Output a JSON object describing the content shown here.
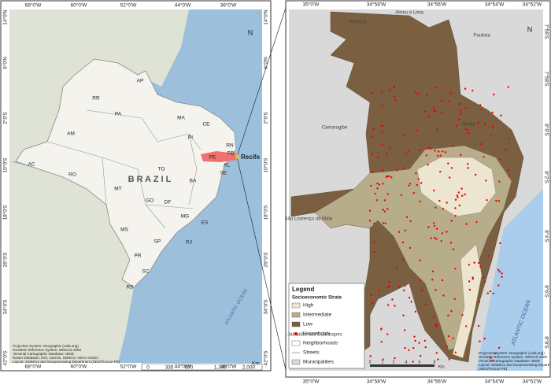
{
  "left_map": {
    "north": "N",
    "lon_labels": [
      "68°0'W",
      "60°0'W",
      "52°0'W",
      "44°0'W",
      "36°0'W"
    ],
    "lat_labels": [
      "14°0'N",
      "6°0'N",
      "2°0'S",
      "10°0'S",
      "18°0'S",
      "26°0'S",
      "34°0'S",
      "42°0'S"
    ],
    "states": [
      "RR",
      "AP",
      "AM",
      "PA",
      "MA",
      "CE",
      "RN",
      "PB",
      "PE",
      "AL",
      "SE",
      "PI",
      "AC",
      "RO",
      "TO",
      "BA",
      "MT",
      "GO",
      "DF",
      "MG",
      "ES",
      "MS",
      "SP",
      "RJ",
      "PR",
      "SC",
      "RS"
    ],
    "country": "B R A Z I L",
    "city": "Recife",
    "ocean": "ATLANTIC OCEAN",
    "scale": {
      "ticks": [
        "0",
        "335",
        "670",
        "1,340",
        "2,000"
      ],
      "unit": "Km"
    },
    "notes": [
      "Projection System: Geographic (Lat/Long)",
      "Geodetic Reference System: SIRGAS 2000",
      "Vectorial Cartographic Database: IBGE",
      "Raster Database: Esri, Garmin, GEBCO, NOAA NGDC",
      "Layout: Statistics and Geoprocessing Department (SEG/Fiocruz-PE)"
    ]
  },
  "right_map": {
    "north": "N",
    "lon_labels": [
      "35°0'W",
      "34°58'W",
      "34°56'W",
      "34°54'W",
      "34°52'W"
    ],
    "lat_labels": [
      "7°56'S",
      "7°58'S",
      "8°0'S",
      "8°2'S",
      "8°4'S",
      "8°6'S",
      "8°8'S"
    ],
    "places": [
      "Paulista",
      "Abreu e Lima",
      "Paulista",
      "Camaragibe",
      "Olinda",
      "São Lourenço da Mata",
      "Jaboatão dos Guararapes"
    ],
    "ocean": "ATLANTIC OCEAN",
    "legend": {
      "title": "Legend",
      "subtitle": "Socioeconomic Strata",
      "items": [
        "High",
        "Intermediate",
        "Low",
        "Households",
        "Neighborhoods",
        "Streets",
        "Municipalities"
      ]
    },
    "scale": {
      "ticks": [
        "0",
        "1",
        "2",
        "4",
        "6",
        "8"
      ],
      "unit": "Km"
    },
    "notes": [
      "Projection System: Geographic (Lat/Long)",
      "Geodetic Reference System: SIRGAS 2000",
      "Vectorial Cartographic Database: IBGE",
      "Layout: Statistics and Geoprocessing Department",
      "(NEG/Fiocruz-PE)"
    ]
  }
}
